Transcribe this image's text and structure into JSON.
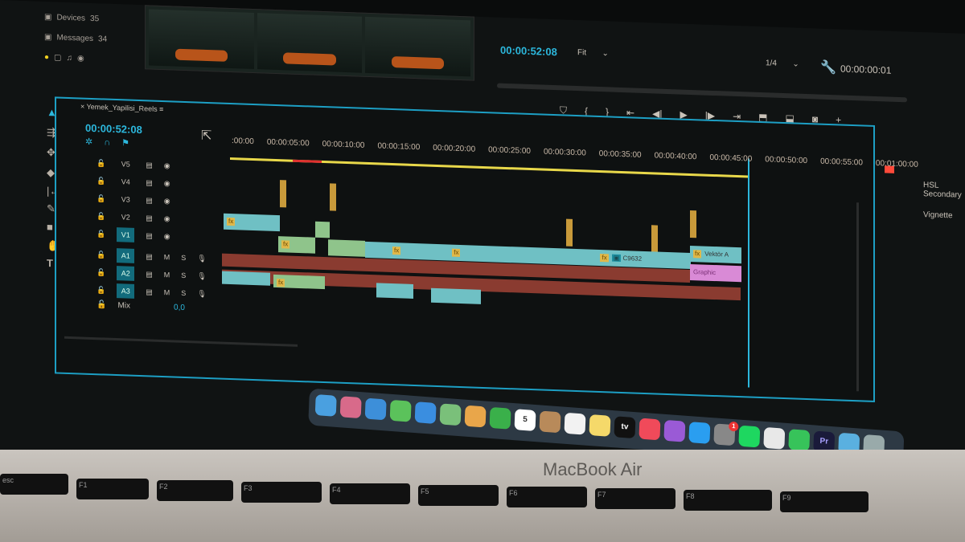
{
  "sidebar": {
    "items": [
      {
        "label": "Devices",
        "count": "35"
      },
      {
        "label": "Messages",
        "count": "34"
      }
    ]
  },
  "program_monitor": {
    "timecode": "00:00:52:08",
    "zoom": "Fit",
    "resolution": "1/4",
    "duration": "00:00:00:01",
    "controls": [
      "marker",
      "mark-in",
      "mark-out",
      "go-to-in",
      "step-back",
      "play",
      "step-forward",
      "go-to-out",
      "lift",
      "extract",
      "export-frame"
    ]
  },
  "effects_panel": {
    "items": [
      "HSL Secondary",
      "Vignette"
    ]
  },
  "timeline": {
    "sequence_name": "Yemek_Yapilisi_Reels",
    "timecode": "00:00:52:08",
    "ruler": [
      ":00:00",
      "00:00:05:00",
      "00:00:10:00",
      "00:00:15:00",
      "00:00:20:00",
      "00:00:25:00",
      "00:00:30:00",
      "00:00:35:00",
      "00:00:40:00",
      "00:00:45:00",
      "00:00:50:00",
      "00:00:55:00",
      "00:01:00:00"
    ],
    "video_tracks": [
      "V5",
      "V4",
      "V3",
      "V2",
      "V1"
    ],
    "audio_tracks": [
      "A1",
      "A2",
      "A3"
    ],
    "track_buttons": {
      "mute": "M",
      "solo": "S"
    },
    "mix_label": "Mix",
    "mix_value": "0,0",
    "clip_labels": {
      "fx": "fx",
      "c9632": "C9632",
      "vektor": "Vektör A",
      "graphic": "Graphic"
    }
  },
  "dock": {
    "apps": [
      "Finder",
      "Launchpad",
      "Safari",
      "Messages",
      "Mail",
      "Maps",
      "Photos",
      "FaceTime",
      "Calendar",
      "Contacts",
      "Reminders",
      "Notes",
      "TV",
      "Music",
      "Podcasts",
      "App Store",
      "System Settings",
      "Spotify",
      "Chrome",
      "WhatsApp",
      "Premiere Pro",
      "Downloads",
      "Trash"
    ],
    "calendar_day": "5",
    "tv_label": "tv",
    "premiere_label": "Pr",
    "settings_badge": "1"
  },
  "laptop": {
    "brand": "MacBook Air"
  },
  "keyboard": {
    "keys": [
      "esc",
      "F1",
      "F2",
      "F3",
      "F4",
      "F5",
      "F6",
      "F7",
      "F8",
      "F9"
    ]
  }
}
